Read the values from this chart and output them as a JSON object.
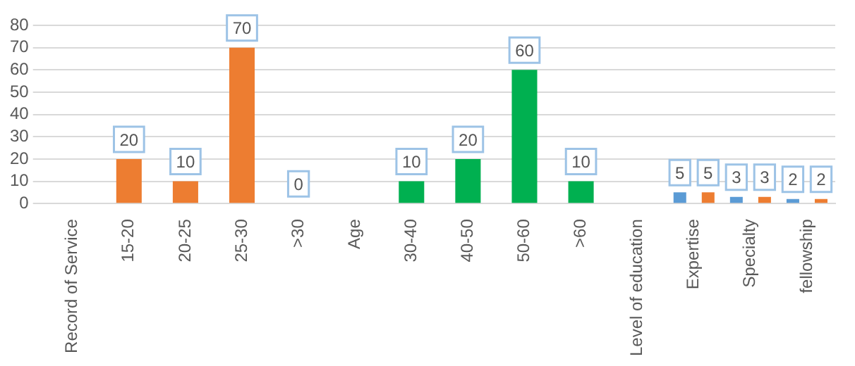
{
  "chart_data": {
    "type": "bar",
    "categories": [
      "Record of Service",
      "15-20",
      "20-25",
      "25-30",
      ">30",
      "Age",
      "30-40",
      "40-50",
      "50-60",
      ">60",
      "Level of education",
      "Expertise",
      "Specialty",
      "fellowship"
    ],
    "series": [
      {
        "color": "#5b9bd5",
        "values": [
          null,
          null,
          null,
          null,
          null,
          null,
          null,
          null,
          null,
          null,
          null,
          5,
          3,
          2
        ]
      },
      {
        "color": "#ed7d31",
        "values": [
          null,
          20,
          10,
          70,
          0,
          null,
          null,
          null,
          null,
          null,
          null,
          5,
          3,
          2
        ]
      },
      {
        "color": "#00b050",
        "values": [
          null,
          null,
          null,
          null,
          null,
          null,
          10,
          20,
          60,
          10,
          null,
          null,
          null,
          null
        ]
      }
    ],
    "ylim": [
      0,
      80
    ],
    "yticks": [
      0,
      10,
      20,
      30,
      40,
      50,
      60,
      70,
      80
    ],
    "grid": "y",
    "legend": false,
    "data_labels": true
  }
}
